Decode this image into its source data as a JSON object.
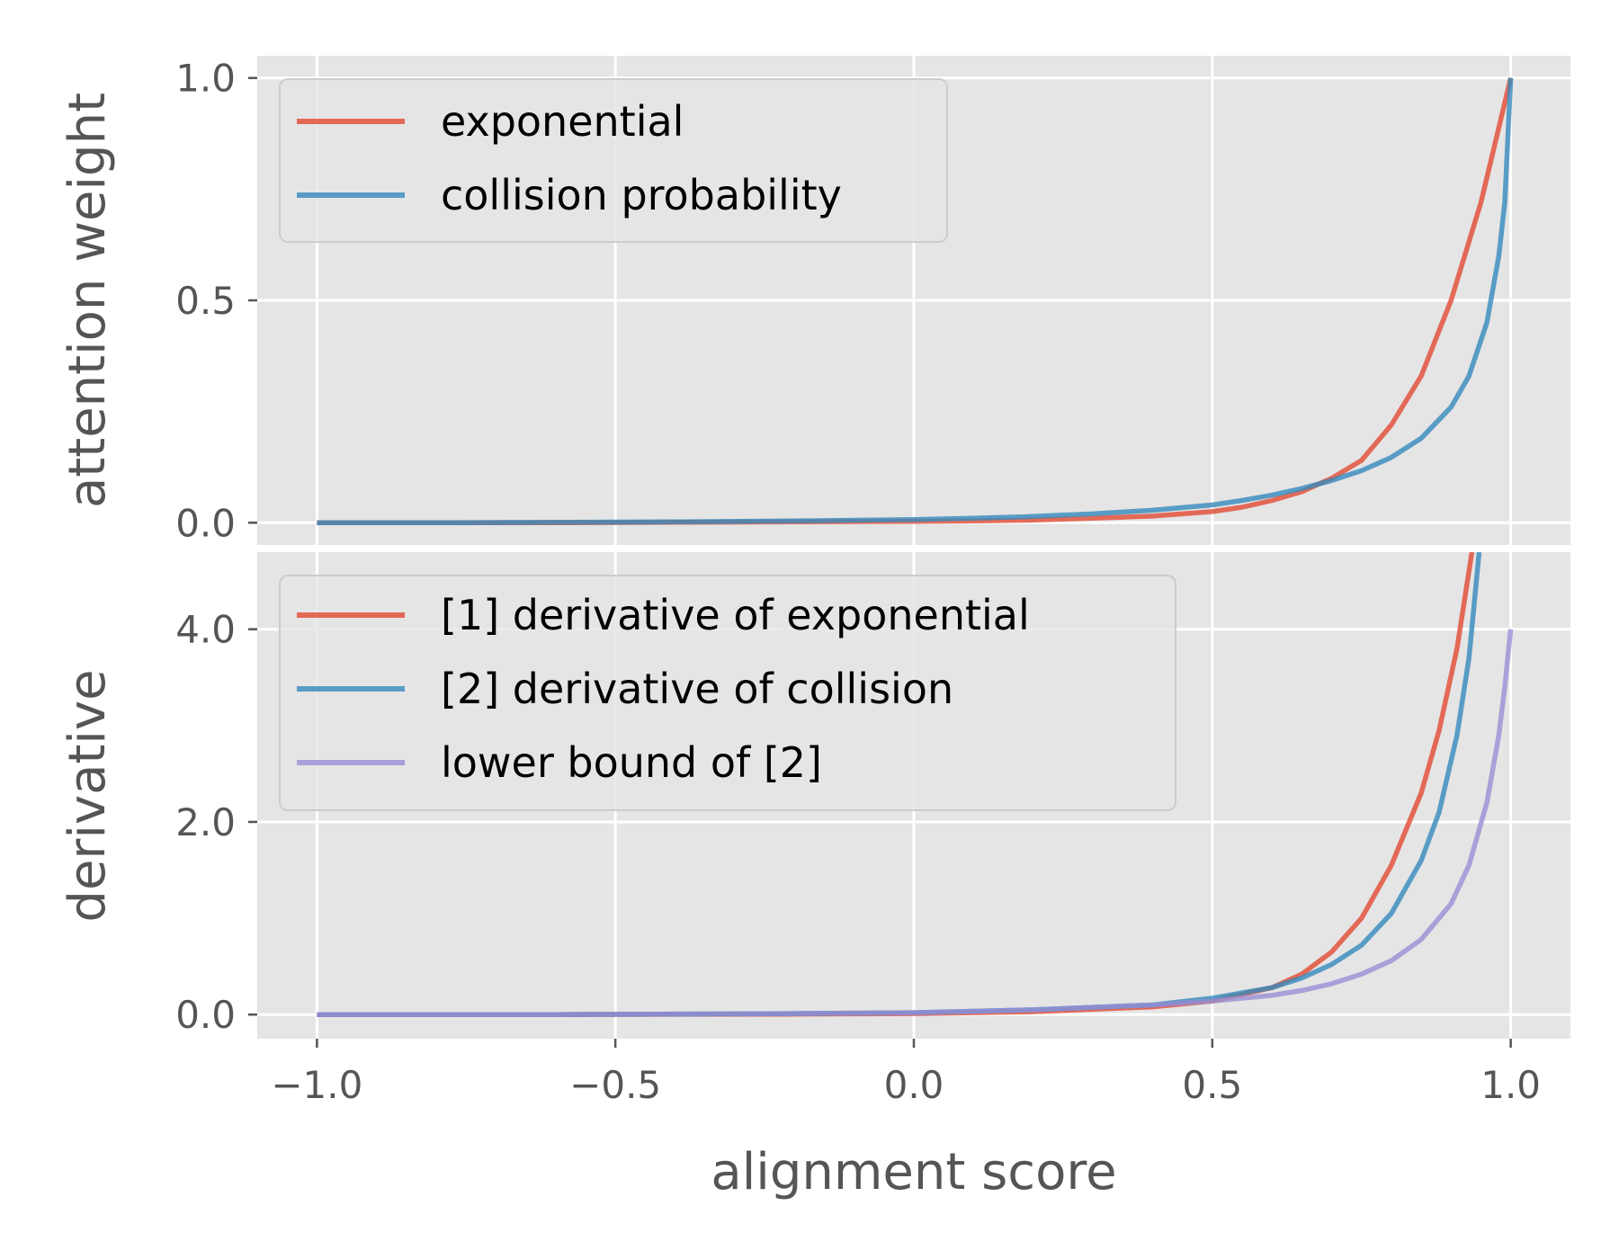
{
  "colors": {
    "red": "#E24A33",
    "blue": "#348ABD",
    "purple": "#988ED5",
    "panel": "#E5E5E5",
    "grid": "#FFFFFF",
    "text": "#555555"
  },
  "chart_data": [
    {
      "type": "line",
      "title": "",
      "xlabel": "",
      "ylabel": "attention weight",
      "xlim": [
        -1.1,
        1.1
      ],
      "ylim": [
        -0.05,
        1.05
      ],
      "xticks": [
        -1.0,
        -0.5,
        0.0,
        0.5,
        1.0
      ],
      "yticks": [
        0.0,
        0.5,
        1.0
      ],
      "ytick_labels": [
        "0.0",
        "0.5",
        "1.0"
      ],
      "grid": true,
      "legend_position": "top-left",
      "series": [
        {
          "name": "exponential",
          "color": "#E24A33",
          "x": [
            -1.0,
            -0.8,
            -0.6,
            -0.4,
            -0.2,
            0.0,
            0.1,
            0.2,
            0.3,
            0.4,
            0.5,
            0.55,
            0.6,
            0.65,
            0.7,
            0.75,
            0.8,
            0.85,
            0.9,
            0.95,
            1.0
          ],
          "y": [
            0.0,
            0.0,
            0.0,
            0.001,
            0.002,
            0.003,
            0.004,
            0.006,
            0.01,
            0.015,
            0.025,
            0.035,
            0.05,
            0.07,
            0.1,
            0.14,
            0.22,
            0.33,
            0.5,
            0.72,
            1.0
          ]
        },
        {
          "name": "collision probability",
          "color": "#348ABD",
          "x": [
            -1.0,
            -0.8,
            -0.6,
            -0.4,
            -0.2,
            0.0,
            0.1,
            0.2,
            0.3,
            0.4,
            0.5,
            0.55,
            0.6,
            0.65,
            0.7,
            0.75,
            0.8,
            0.85,
            0.9,
            0.93,
            0.96,
            0.98,
            0.99,
            1.0
          ],
          "y": [
            0.0,
            0.0,
            0.001,
            0.002,
            0.004,
            0.007,
            0.01,
            0.014,
            0.02,
            0.028,
            0.04,
            0.05,
            0.062,
            0.077,
            0.095,
            0.117,
            0.147,
            0.19,
            0.26,
            0.33,
            0.45,
            0.6,
            0.72,
            1.0
          ]
        }
      ]
    },
    {
      "type": "line",
      "title": "",
      "xlabel": "alignment score",
      "ylabel": "derivative",
      "xlim": [
        -1.1,
        1.1
      ],
      "ylim": [
        -0.25,
        4.8
      ],
      "xticks": [
        -1.0,
        -0.5,
        0.0,
        0.5,
        1.0
      ],
      "xtick_labels": [
        "−1.0",
        "−0.5",
        "0.0",
        "0.5",
        "1.0"
      ],
      "yticks": [
        0.0,
        2.0,
        4.0
      ],
      "ytick_labels": [
        "0.0",
        "2.0",
        "4.0"
      ],
      "grid": true,
      "legend_position": "top-left",
      "series": [
        {
          "name": "[1] derivative of exponential",
          "color": "#E24A33",
          "x": [
            -1.0,
            -0.6,
            -0.2,
            0.0,
            0.2,
            0.4,
            0.5,
            0.6,
            0.65,
            0.7,
            0.75,
            0.8,
            0.85,
            0.88,
            0.91,
            0.935
          ],
          "y": [
            0.0,
            0.0,
            0.005,
            0.01,
            0.03,
            0.08,
            0.14,
            0.28,
            0.42,
            0.65,
            1.0,
            1.55,
            2.3,
            2.95,
            3.8,
            4.8
          ]
        },
        {
          "name": "[2] derivative of collision",
          "color": "#348ABD",
          "x": [
            -1.0,
            -0.6,
            -0.2,
            0.0,
            0.2,
            0.4,
            0.5,
            0.6,
            0.65,
            0.7,
            0.75,
            0.8,
            0.85,
            0.88,
            0.91,
            0.93,
            0.947
          ],
          "y": [
            0.0,
            0.0,
            0.01,
            0.02,
            0.05,
            0.1,
            0.17,
            0.28,
            0.38,
            0.52,
            0.72,
            1.05,
            1.6,
            2.1,
            2.9,
            3.7,
            4.8
          ]
        },
        {
          "name": "lower bound of [2]",
          "color": "#988ED5",
          "x": [
            -1.0,
            -0.6,
            -0.2,
            0.0,
            0.2,
            0.4,
            0.5,
            0.6,
            0.65,
            0.7,
            0.75,
            0.8,
            0.85,
            0.9,
            0.93,
            0.96,
            0.98,
            0.99,
            1.0
          ],
          "y": [
            0.0,
            0.0,
            0.01,
            0.02,
            0.05,
            0.1,
            0.14,
            0.2,
            0.25,
            0.32,
            0.42,
            0.56,
            0.78,
            1.15,
            1.55,
            2.2,
            2.9,
            3.4,
            4.0
          ]
        }
      ]
    }
  ]
}
